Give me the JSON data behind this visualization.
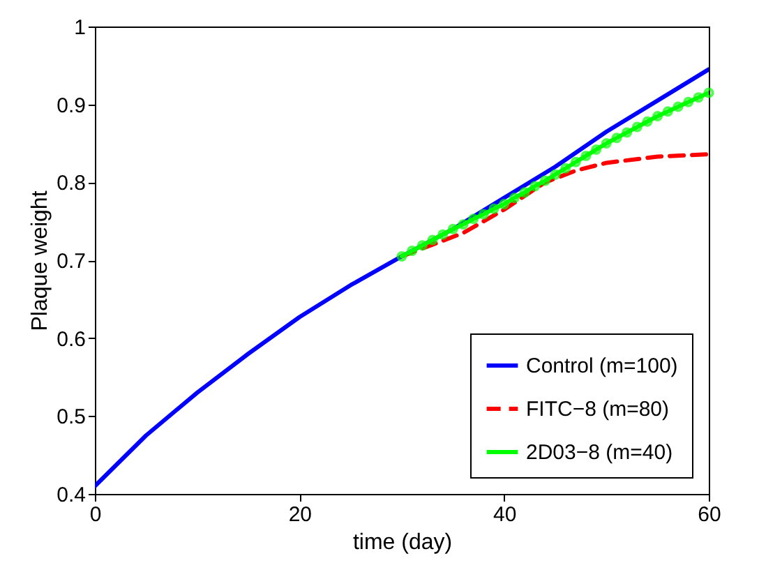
{
  "chart_data": {
    "type": "line",
    "xlabel": "time (day)",
    "ylabel": "Plaque weight",
    "xlim": [
      0,
      60
    ],
    "xticks": [
      0,
      20,
      40,
      60
    ],
    "ylim": [
      0.4,
      1
    ],
    "yticks": [
      0.4,
      0.5,
      0.6,
      0.7,
      0.8,
      0.9,
      1
    ],
    "grid": false,
    "legend": "bottom right",
    "series": [
      {
        "name": "Control (m=100)",
        "color": "#0000ff",
        "line_style": "solid",
        "marker": "none",
        "x": [
          0,
          5,
          10,
          15,
          20,
          25,
          30,
          35,
          40,
          45,
          50,
          55,
          60
        ],
        "values": [
          0.41,
          0.475,
          0.53,
          0.58,
          0.627,
          0.668,
          0.705,
          0.74,
          0.78,
          0.82,
          0.865,
          0.905,
          0.945
        ]
      },
      {
        "name": "FITC−8 (m=80)",
        "color": "#ff0000",
        "line_style": "dashed",
        "marker": "none",
        "x": [
          30,
          33,
          36,
          40,
          44,
          47,
          50,
          55,
          60
        ],
        "values": [
          0.705,
          0.72,
          0.735,
          0.765,
          0.8,
          0.815,
          0.825,
          0.833,
          0.836
        ]
      },
      {
        "name": "2D03−8 (m=40)",
        "color": "#00ff00",
        "line_style": "solid",
        "marker": "circle",
        "x": [
          30,
          31,
          32,
          33,
          34,
          35,
          36,
          37,
          38,
          39,
          40,
          41,
          42,
          43,
          44,
          45,
          46,
          47,
          48,
          49,
          50,
          51,
          52,
          53,
          54,
          55,
          56,
          57,
          58,
          59,
          60
        ],
        "values": [
          0.705,
          0.712,
          0.719,
          0.726,
          0.733,
          0.74,
          0.746,
          0.753,
          0.759,
          0.766,
          0.772,
          0.78,
          0.787,
          0.795,
          0.802,
          0.81,
          0.818,
          0.826,
          0.834,
          0.842,
          0.85,
          0.857,
          0.864,
          0.871,
          0.878,
          0.885,
          0.891,
          0.897,
          0.903,
          0.909,
          0.915
        ]
      }
    ]
  }
}
